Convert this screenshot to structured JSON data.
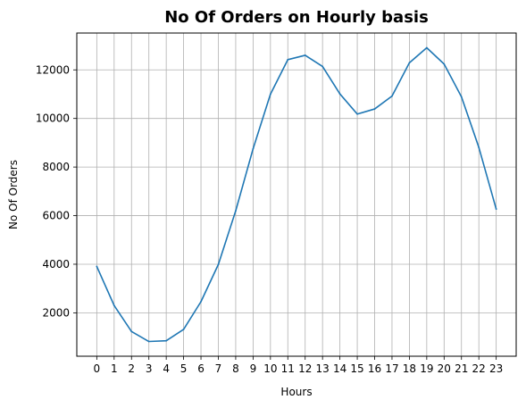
{
  "chart_data": {
    "type": "line",
    "title": "No Of Orders on Hourly basis",
    "xlabel": "Hours",
    "ylabel": "No Of Orders",
    "x": [
      0,
      1,
      2,
      3,
      4,
      5,
      6,
      7,
      8,
      9,
      10,
      11,
      12,
      13,
      14,
      15,
      16,
      17,
      18,
      19,
      20,
      21,
      22,
      23
    ],
    "series": [
      {
        "values": [
          3910,
          2300,
          1230,
          820,
          850,
          1320,
          2460,
          3990,
          6200,
          8750,
          11000,
          12420,
          12600,
          12140,
          11010,
          10180,
          10390,
          10920,
          12290,
          12910,
          12240,
          10890,
          8810,
          6270
        ],
        "color": "#1f77b4"
      }
    ],
    "xticks": [
      "0",
      "1",
      "2",
      "3",
      "4",
      "5",
      "6",
      "7",
      "8",
      "9",
      "10",
      "11",
      "12",
      "13",
      "14",
      "15",
      "16",
      "17",
      "18",
      "19",
      "20",
      "21",
      "22",
      "23"
    ],
    "yticks": [
      2000,
      4000,
      6000,
      8000,
      10000,
      12000
    ],
    "xlim": [
      -1.15,
      24.15
    ],
    "ylim": [
      214,
      13516
    ],
    "grid": true,
    "legend": "none"
  }
}
